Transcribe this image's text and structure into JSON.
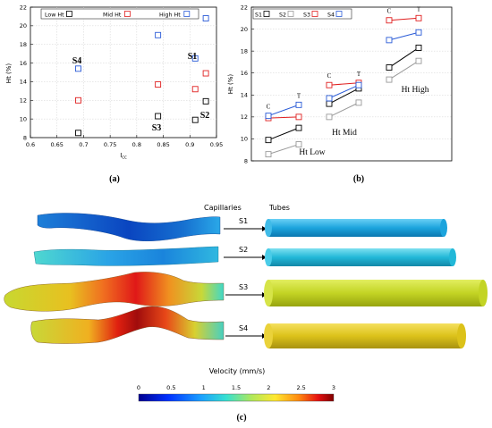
{
  "panel_labels": {
    "a": "(a)",
    "b": "(b)",
    "c": "(c)"
  },
  "chart_data": [
    {
      "type": "scatter",
      "panel": "a",
      "xlabel": "I_cc",
      "ylabel": "Ht (%)",
      "xlim": [
        0.6,
        0.95
      ],
      "ylim": [
        8,
        22
      ],
      "xticks": [
        "0.6",
        "0.65",
        "0.7",
        "0.75",
        "0.8",
        "0.85",
        "0.9",
        "0.95"
      ],
      "yticks": [
        "8",
        "10",
        "12",
        "14",
        "16",
        "18",
        "20",
        "22"
      ],
      "legend_position": "top",
      "grid": true,
      "series": [
        {
          "name": "Low Ht",
          "color": "#000000",
          "x": [
            0.69,
            0.84,
            0.91,
            0.93
          ],
          "y": [
            8.5,
            10.3,
            9.9,
            11.9
          ]
        },
        {
          "name": "Mid Ht",
          "color": "#e02020",
          "x": [
            0.69,
            0.84,
            0.91,
            0.93
          ],
          "y": [
            12.0,
            13.7,
            13.2,
            14.9
          ]
        },
        {
          "name": "High Ht",
          "color": "#2a5bd7",
          "x": [
            0.69,
            0.84,
            0.91,
            0.93
          ],
          "y": [
            15.4,
            19.0,
            16.5,
            20.8
          ]
        }
      ],
      "annotations": [
        "S4",
        "S3",
        "S1",
        "S2"
      ]
    },
    {
      "type": "line",
      "panel": "b",
      "xlabel": "",
      "ylabel": "Ht (%)",
      "ylim": [
        8,
        22
      ],
      "yticks": [
        "8",
        "10",
        "12",
        "14",
        "16",
        "18",
        "20",
        "22"
      ],
      "legend_position": "top-left",
      "grid": true,
      "groups": [
        "Ht Low",
        "Ht Mid",
        "Ht High"
      ],
      "pair_labels": [
        "C",
        "T"
      ],
      "series": [
        {
          "name": "S1",
          "color": "#000000",
          "values": [
            [
              9.9,
              11.0
            ],
            [
              13.2,
              14.6
            ],
            [
              16.5,
              18.3
            ]
          ]
        },
        {
          "name": "S2",
          "color": "#9a9a9a",
          "values": [
            [
              8.6,
              9.5
            ],
            [
              12.0,
              13.3
            ],
            [
              15.4,
              17.1
            ]
          ]
        },
        {
          "name": "S3",
          "color": "#e02020",
          "values": [
            [
              11.9,
              12.0
            ],
            [
              14.9,
              15.1
            ],
            [
              20.8,
              21.0
            ]
          ]
        },
        {
          "name": "S4",
          "color": "#2a5bd7",
          "values": [
            [
              12.1,
              13.1
            ],
            [
              13.7,
              14.9
            ],
            [
              19.0,
              19.7
            ]
          ]
        }
      ]
    }
  ],
  "panel_c": {
    "col_capillaries": "Capillaries",
    "col_tubes": "Tubes",
    "rows": [
      {
        "label": "S1",
        "velocity": 0.9
      },
      {
        "label": "S2",
        "velocity": 1.2
      },
      {
        "label": "S3",
        "velocity": 2.0
      },
      {
        "label": "S4",
        "velocity": 2.2
      }
    ],
    "colorbar": {
      "title": "Velocity (mm/s)",
      "ticks": [
        "0",
        "0.5",
        "1",
        "1.5",
        "2",
        "2.5",
        "3"
      ],
      "range": [
        0,
        3
      ]
    }
  }
}
